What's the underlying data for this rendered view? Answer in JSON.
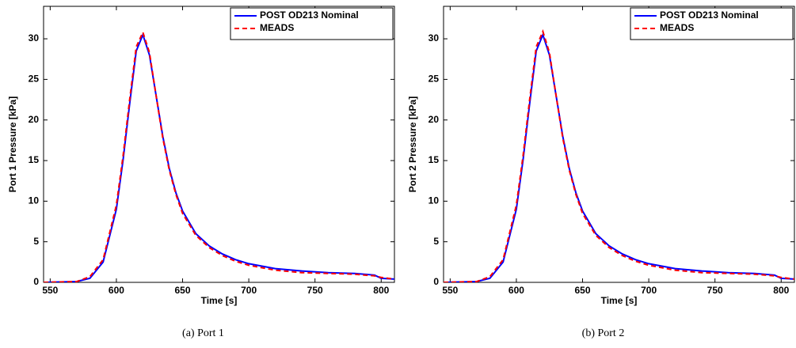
{
  "chart_data": [
    {
      "type": "line",
      "ylabel": "Port 1 Pressure [kPa]",
      "xlabel": "Time [s]",
      "caption": "(a) Port 1",
      "x": [
        545,
        570,
        580,
        590,
        600,
        605,
        610,
        615,
        620,
        625,
        630,
        635,
        640,
        645,
        650,
        660,
        670,
        680,
        690,
        700,
        720,
        740,
        760,
        780,
        795,
        800,
        810
      ],
      "series": [
        {
          "name": "POST OD213 Nominal",
          "color": "#0000ff",
          "dash": false,
          "values": [
            0,
            0.1,
            0.5,
            2.5,
            9,
            15,
            22,
            28.5,
            30.5,
            28,
            23,
            18,
            14,
            11,
            8.8,
            6,
            4.5,
            3.5,
            2.8,
            2.3,
            1.7,
            1.4,
            1.2,
            1.1,
            0.9,
            0.5,
            0.4
          ]
        },
        {
          "name": "MEADS",
          "color": "#ff0000",
          "dash": true,
          "values": [
            0,
            0.1,
            0.7,
            2.8,
            9.5,
            15.5,
            22.5,
            29,
            30.8,
            28.3,
            23,
            17.8,
            13.8,
            10.8,
            8.5,
            5.8,
            4.3,
            3.3,
            2.6,
            2.1,
            1.5,
            1.2,
            1.1,
            1.0,
            0.8,
            0.6,
            0.4
          ]
        }
      ],
      "xlim": [
        545,
        810
      ],
      "xticks": [
        550,
        600,
        650,
        700,
        750,
        800
      ],
      "ylim": [
        0,
        34
      ],
      "yticks": [
        0,
        5,
        10,
        15,
        20,
        25,
        30
      ],
      "legend": "upper right"
    },
    {
      "type": "line",
      "ylabel": "Port 2 Pressure [kPa]",
      "xlabel": "Time [s]",
      "caption": "(b) Port 2",
      "x": [
        545,
        570,
        580,
        590,
        600,
        605,
        610,
        615,
        620,
        625,
        630,
        635,
        640,
        645,
        650,
        660,
        670,
        680,
        690,
        700,
        720,
        740,
        760,
        780,
        795,
        800,
        810
      ],
      "series": [
        {
          "name": "POST OD213 Nominal",
          "color": "#0000ff",
          "dash": false,
          "values": [
            0,
            0.1,
            0.5,
            2.5,
            9,
            15,
            22,
            28.5,
            30.5,
            28,
            23,
            18,
            14,
            11,
            8.8,
            6,
            4.5,
            3.5,
            2.8,
            2.3,
            1.7,
            1.4,
            1.2,
            1.1,
            0.9,
            0.5,
            0.4
          ]
        },
        {
          "name": "MEADS",
          "color": "#ff0000",
          "dash": true,
          "values": [
            0,
            0.1,
            0.7,
            2.8,
            9.5,
            15.5,
            22.5,
            29,
            30.9,
            28.3,
            23,
            17.8,
            13.8,
            10.8,
            8.5,
            5.8,
            4.3,
            3.3,
            2.6,
            2.1,
            1.5,
            1.2,
            1.1,
            1.0,
            0.8,
            0.6,
            0.4
          ]
        }
      ],
      "xlim": [
        545,
        810
      ],
      "xticks": [
        550,
        600,
        650,
        700,
        750,
        800
      ],
      "ylim": [
        0,
        34
      ],
      "yticks": [
        0,
        5,
        10,
        15,
        20,
        25,
        30
      ],
      "legend": "upper right"
    }
  ]
}
